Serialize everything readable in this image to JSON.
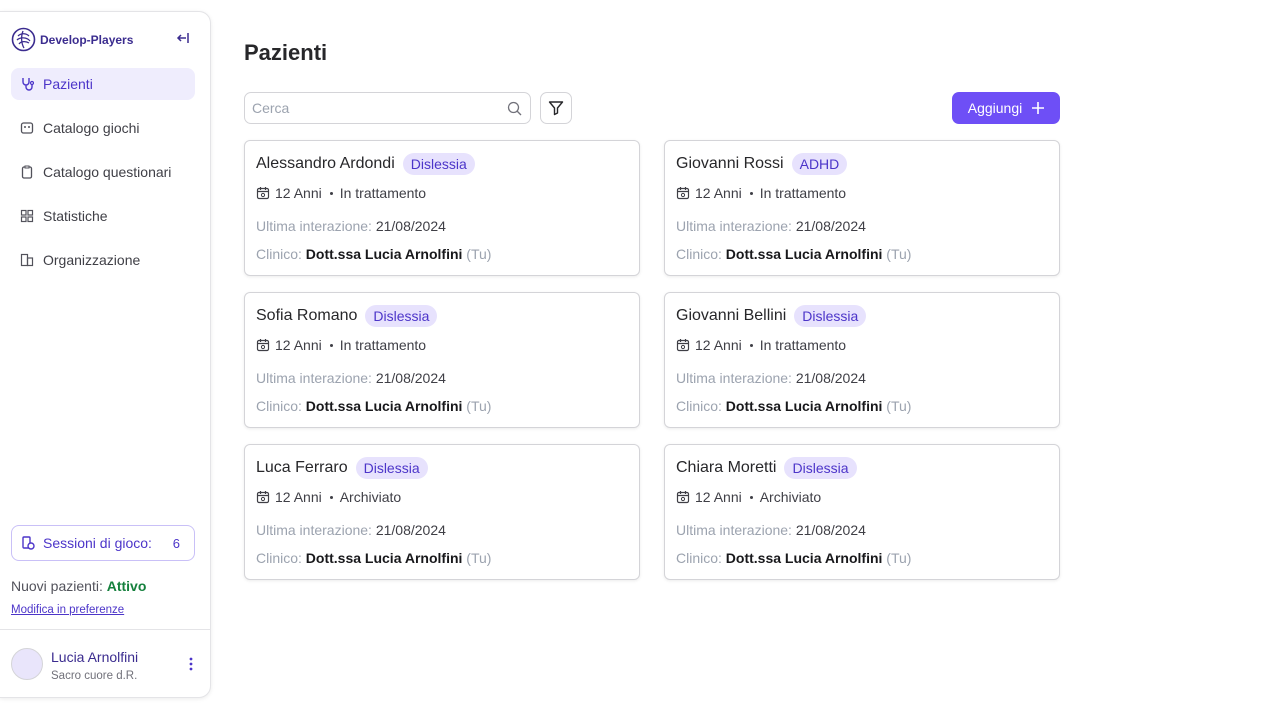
{
  "sidebar": {
    "brand": "Develop-Players",
    "nav": [
      "Pazienti",
      "Catalogo giochi",
      "Catalogo questionari",
      "Statistiche",
      "Organizzazione"
    ],
    "sessions": {
      "label": "Sessioni di gioco:",
      "count": 6
    },
    "new_patients": {
      "label": "Nuovi pazienti:",
      "status": "Attivo"
    },
    "preferences_link": "Modifica in preferenze",
    "user": {
      "name": "Lucia Arnolfini",
      "organization": "Sacro cuore d.R."
    }
  },
  "main": {
    "title": "Pazienti",
    "search_placeholder": "Cerca",
    "add_button": "Aggiungi",
    "card_labels": {
      "last_interaction": "Ultima interazione:",
      "clinician": "Clinico:",
      "you": "(Tu)"
    },
    "patients": [
      {
        "name": "Alessandro Ardondi",
        "tag": "Dislessia",
        "age": "12 Anni",
        "status": "In trattamento",
        "last_interaction": "21/08/2024",
        "clinician": "Dott.ssa Lucia Arnolfini"
      },
      {
        "name": "Giovanni Rossi",
        "tag": "ADHD",
        "age": "12 Anni",
        "status": "In trattamento",
        "last_interaction": "21/08/2024",
        "clinician": "Dott.ssa Lucia Arnolfini"
      },
      {
        "name": "Sofia Romano",
        "tag": "Dislessia",
        "age": "12 Anni",
        "status": "In trattamento",
        "last_interaction": "21/08/2024",
        "clinician": "Dott.ssa Lucia Arnolfini"
      },
      {
        "name": "Giovanni Bellini",
        "tag": "Dislessia",
        "age": "12 Anni",
        "status": "In trattamento",
        "last_interaction": "21/08/2024",
        "clinician": "Dott.ssa Lucia Arnolfini"
      },
      {
        "name": "Luca Ferraro",
        "tag": "Dislessia",
        "age": "12 Anni",
        "status": "Archiviato",
        "last_interaction": "21/08/2024",
        "clinician": "Dott.ssa Lucia Arnolfini"
      },
      {
        "name": "Chiara Moretti",
        "tag": "Dislessia",
        "age": "12 Anni",
        "status": "Archiviato",
        "last_interaction": "21/08/2024",
        "clinician": "Dott.ssa Lucia Arnolfini"
      }
    ]
  }
}
